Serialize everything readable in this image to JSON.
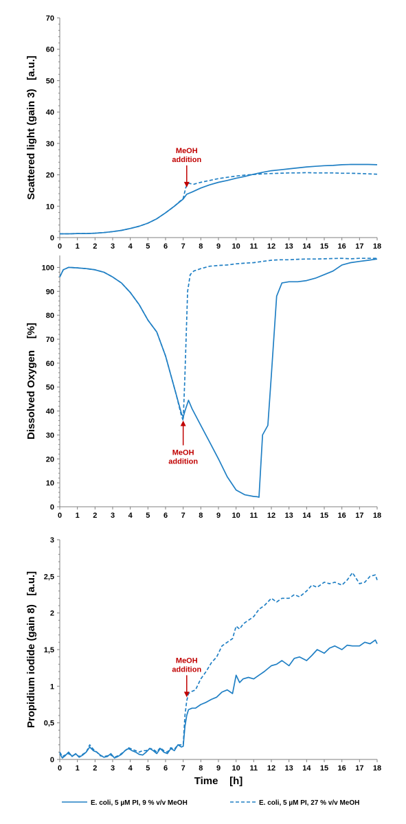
{
  "chart_data": [
    {
      "type": "line",
      "ylabel": "Scattered light (gain 3)   [a.u.]",
      "xlim": [
        0,
        18
      ],
      "ylim": [
        0,
        70
      ],
      "xticks": [
        "0",
        "1",
        "2",
        "3",
        "4",
        "5",
        "6",
        "7",
        "8",
        "9",
        "10",
        "11",
        "12",
        "13",
        "14",
        "15",
        "16",
        "17",
        "18"
      ],
      "yticks": [
        "0",
        "10",
        "20",
        "30",
        "40",
        "50",
        "60",
        "70"
      ],
      "annotation": {
        "lines": [
          "MeOH",
          "addition"
        ],
        "x": 7.2,
        "y_arrow_tip": 16,
        "direction": "down"
      },
      "series": [
        {
          "name": "E. coli, 5 µM PI, 9 % v/v MeOH",
          "style": "solid",
          "x": [
            0,
            0.5,
            1,
            1.5,
            2,
            2.5,
            3,
            3.5,
            4,
            4.5,
            5,
            5.5,
            6,
            6.5,
            7,
            7.2,
            7.5,
            8,
            8.5,
            9,
            9.5,
            10,
            10.5,
            11,
            11.5,
            12,
            12.5,
            13,
            13.5,
            14,
            14.5,
            15,
            15.5,
            16,
            16.5,
            17,
            17.5,
            18
          ],
          "y": [
            1.2,
            1.2,
            1.3,
            1.3,
            1.4,
            1.6,
            1.9,
            2.3,
            2.9,
            3.6,
            4.6,
            6,
            7.9,
            10,
            12.3,
            13.8,
            14.5,
            15.8,
            16.8,
            17.6,
            18.2,
            18.9,
            19.5,
            20.2,
            20.8,
            21.3,
            21.6,
            21.9,
            22.2,
            22.5,
            22.7,
            22.9,
            23,
            23.2,
            23.3,
            23.3,
            23.3,
            23.2
          ]
        },
        {
          "name": "E. coli, 5 µM PI, 27 % v/v MeOH",
          "style": "dashed",
          "x": [
            0,
            0.5,
            1,
            1.5,
            2,
            2.5,
            3,
            3.5,
            4,
            4.5,
            5,
            5.5,
            6,
            6.5,
            7,
            7.15,
            7.3,
            7.6,
            8,
            8.5,
            9,
            9.5,
            10,
            10.5,
            11,
            11.5,
            12,
            12.5,
            13,
            13.5,
            14,
            14.5,
            15,
            15.5,
            16,
            16.5,
            17,
            17.5,
            18
          ],
          "y": [
            1.2,
            1.2,
            1.3,
            1.3,
            1.4,
            1.6,
            1.9,
            2.3,
            2.9,
            3.6,
            4.6,
            6,
            7.9,
            10,
            12.5,
            16,
            17.3,
            17,
            17.6,
            18.2,
            18.8,
            19.2,
            19.6,
            19.9,
            20.1,
            20.3,
            20.4,
            20.5,
            20.6,
            20.6,
            20.7,
            20.6,
            20.6,
            20.6,
            20.5,
            20.5,
            20.4,
            20.3,
            20.2
          ]
        }
      ]
    },
    {
      "type": "line",
      "ylabel": "Dissolved Oxygen    [%]",
      "xlim": [
        0,
        18
      ],
      "ylim": [
        0,
        105
      ],
      "xticks": [
        "0",
        "1",
        "2",
        "3",
        "4",
        "5",
        "6",
        "7",
        "8",
        "9",
        "10",
        "11",
        "12",
        "13",
        "14",
        "15",
        "16",
        "17",
        "18"
      ],
      "yticks": [
        "0",
        "10",
        "20",
        "30",
        "40",
        "50",
        "60",
        "70",
        "80",
        "90",
        "100"
      ],
      "annotation": {
        "lines": [
          "MeOH",
          "addition"
        ],
        "x": 7.0,
        "y_arrow_tip": 36,
        "direction": "up"
      },
      "series": [
        {
          "name": "E. coli, 5 µM PI, 9 % v/v MeOH",
          "style": "solid",
          "x": [
            0,
            0.2,
            0.5,
            1,
            1.5,
            2,
            2.5,
            3,
            3.5,
            4,
            4.5,
            5,
            5.5,
            6,
            6.3,
            6.6,
            6.9,
            7,
            7.1,
            7.3,
            7.5,
            8,
            8.5,
            9,
            9.5,
            10,
            10.5,
            11,
            11.2,
            11.3,
            11.5,
            11.8,
            12,
            12.3,
            12.6,
            13,
            13.5,
            14,
            14.5,
            15,
            15.5,
            16,
            16.5,
            17,
            17.5,
            18
          ],
          "y": [
            96,
            99,
            100,
            99.8,
            99.5,
            99,
            98,
            96,
            93.5,
            89.5,
            84.5,
            78,
            73,
            63,
            55,
            47,
            39,
            37.5,
            40,
            44.5,
            41,
            34,
            27,
            20,
            12.5,
            7,
            5,
            4.3,
            4.2,
            4,
            30,
            34,
            55,
            88,
            93.5,
            94,
            94,
            94.5,
            95.5,
            97,
            98.5,
            101,
            102,
            102.5,
            103,
            103.5
          ]
        },
        {
          "name": "E. coli, 5 µM PI, 27 % v/v MeOH",
          "style": "dashed",
          "x": [
            0,
            0.2,
            0.5,
            1,
            1.5,
            2,
            2.5,
            3,
            3.5,
            4,
            4.5,
            5,
            5.5,
            6,
            6.3,
            6.6,
            6.9,
            7,
            7.1,
            7.25,
            7.4,
            7.6,
            8,
            8.5,
            9,
            9.5,
            10,
            10.5,
            11,
            11.5,
            12,
            12.5,
            13,
            13.5,
            14,
            14.5,
            15,
            15.5,
            16,
            16.5,
            17,
            17.5,
            18
          ],
          "y": [
            96,
            99,
            100,
            99.8,
            99.5,
            99,
            98,
            96,
            93.5,
            89.5,
            84.5,
            78,
            73,
            63,
            55,
            47,
            38,
            36,
            55,
            90,
            97,
            98.5,
            99.5,
            100.5,
            100.8,
            101,
            101.5,
            101.8,
            102,
            102.5,
            103,
            103.2,
            103.2,
            103.4,
            103.5,
            103.5,
            103.6,
            103.7,
            103.8,
            103.6,
            103.8,
            103.8,
            103.8
          ]
        }
      ]
    },
    {
      "type": "line",
      "xlabel": "Time    [h]",
      "ylabel": "Propidium iodide (gain 8)   [a.u.]",
      "xlim": [
        0,
        18
      ],
      "ylim": [
        0,
        3
      ],
      "xticks": [
        "0",
        "1",
        "2",
        "3",
        "4",
        "5",
        "6",
        "7",
        "8",
        "9",
        "10",
        "11",
        "12",
        "13",
        "14",
        "15",
        "16",
        "17",
        "18"
      ],
      "yticks": [
        "0",
        "0,5",
        "1",
        "1,5",
        "2",
        "2,5",
        "3"
      ],
      "annotation": {
        "lines": [
          "MeOH",
          "addition"
        ],
        "x": 7.2,
        "y_arrow_tip": 0.85,
        "direction": "down"
      },
      "series": [
        {
          "name": "E. coli, 5 µM PI, 9 % v/v MeOH",
          "style": "solid",
          "x": [
            0,
            0.15,
            0.3,
            0.5,
            0.7,
            0.9,
            1.1,
            1.3,
            1.5,
            1.7,
            1.9,
            2.1,
            2.3,
            2.5,
            2.7,
            2.9,
            3.1,
            3.3,
            3.5,
            3.7,
            3.9,
            4.1,
            4.3,
            4.5,
            4.7,
            4.9,
            5.1,
            5.3,
            5.5,
            5.7,
            5.9,
            6.1,
            6.3,
            6.5,
            6.7,
            6.9,
            7,
            7.1,
            7.2,
            7.3,
            7.5,
            7.7,
            8,
            8.3,
            8.6,
            8.9,
            9.2,
            9.5,
            9.8,
            10,
            10.2,
            10.4,
            10.7,
            11,
            11.3,
            11.6,
            12,
            12.3,
            12.6,
            13,
            13.3,
            13.6,
            14,
            14.3,
            14.6,
            15,
            15.3,
            15.6,
            16,
            16.3,
            16.6,
            17,
            17.3,
            17.6,
            17.9,
            18
          ],
          "y": [
            0.08,
            0.02,
            0.05,
            0.1,
            0.04,
            0.08,
            0.03,
            0.06,
            0.1,
            0.17,
            0.12,
            0.1,
            0.06,
            0.03,
            0.04,
            0.08,
            0.02,
            0.04,
            0.07,
            0.12,
            0.15,
            0.12,
            0.1,
            0.07,
            0.06,
            0.1,
            0.15,
            0.12,
            0.08,
            0.15,
            0.1,
            0.08,
            0.15,
            0.12,
            0.2,
            0.17,
            0.18,
            0.45,
            0.6,
            0.68,
            0.7,
            0.7,
            0.75,
            0.78,
            0.82,
            0.85,
            0.92,
            0.95,
            0.9,
            1.15,
            1.05,
            1.1,
            1.12,
            1.1,
            1.15,
            1.2,
            1.28,
            1.3,
            1.35,
            1.28,
            1.38,
            1.4,
            1.35,
            1.42,
            1.5,
            1.45,
            1.52,
            1.55,
            1.5,
            1.56,
            1.55,
            1.55,
            1.6,
            1.58,
            1.63,
            1.58
          ]
        },
        {
          "name": "E. coli, 5 µM PI, 27 % v/v MeOH",
          "style": "dashed",
          "x": [
            0,
            0.15,
            0.3,
            0.5,
            0.7,
            0.9,
            1.1,
            1.3,
            1.5,
            1.7,
            1.9,
            2.1,
            2.3,
            2.5,
            2.7,
            2.9,
            3.1,
            3.3,
            3.5,
            3.7,
            3.9,
            4.1,
            4.3,
            4.5,
            4.7,
            4.9,
            5.1,
            5.3,
            5.5,
            5.7,
            5.9,
            6.1,
            6.3,
            6.5,
            6.7,
            6.9,
            7,
            7.1,
            7.2,
            7.3,
            7.5,
            7.7,
            8,
            8.3,
            8.6,
            8.9,
            9.2,
            9.5,
            9.8,
            10,
            10.2,
            10.4,
            10.7,
            11,
            11.3,
            11.6,
            12,
            12.3,
            12.6,
            13,
            13.3,
            13.6,
            14,
            14.3,
            14.6,
            15,
            15.3,
            15.6,
            16,
            16.3,
            16.6,
            17,
            17.3,
            17.6,
            17.9,
            18
          ],
          "y": [
            0.1,
            0.04,
            0.06,
            0.08,
            0.05,
            0.07,
            0.04,
            0.07,
            0.1,
            0.2,
            0.14,
            0.1,
            0.05,
            0.04,
            0.05,
            0.06,
            0.03,
            0.05,
            0.08,
            0.12,
            0.16,
            0.14,
            0.12,
            0.1,
            0.12,
            0.12,
            0.15,
            0.14,
            0.1,
            0.16,
            0.12,
            0.1,
            0.16,
            0.14,
            0.2,
            0.2,
            0.2,
            0.6,
            0.8,
            0.9,
            0.93,
            0.95,
            1.1,
            1.2,
            1.32,
            1.4,
            1.55,
            1.6,
            1.65,
            1.82,
            1.78,
            1.85,
            1.9,
            1.95,
            2.05,
            2.1,
            2.2,
            2.15,
            2.2,
            2.2,
            2.25,
            2.22,
            2.3,
            2.38,
            2.35,
            2.42,
            2.4,
            2.42,
            2.38,
            2.45,
            2.55,
            2.4,
            2.42,
            2.5,
            2.52,
            2.45
          ]
        }
      ]
    }
  ],
  "legend": {
    "placement": "bottom",
    "items": [
      {
        "label": "E. coli, 5 µM PI, 9 % v/v MeOH",
        "style": "solid"
      },
      {
        "label": "E. coli, 5 µM PI, 27 % v/v MeOH",
        "style": "dashed"
      }
    ]
  },
  "colors": {
    "line": "#1f7fc4",
    "annotation": "#c00000",
    "axis": "#7f7f7f",
    "text": "#000000"
  }
}
